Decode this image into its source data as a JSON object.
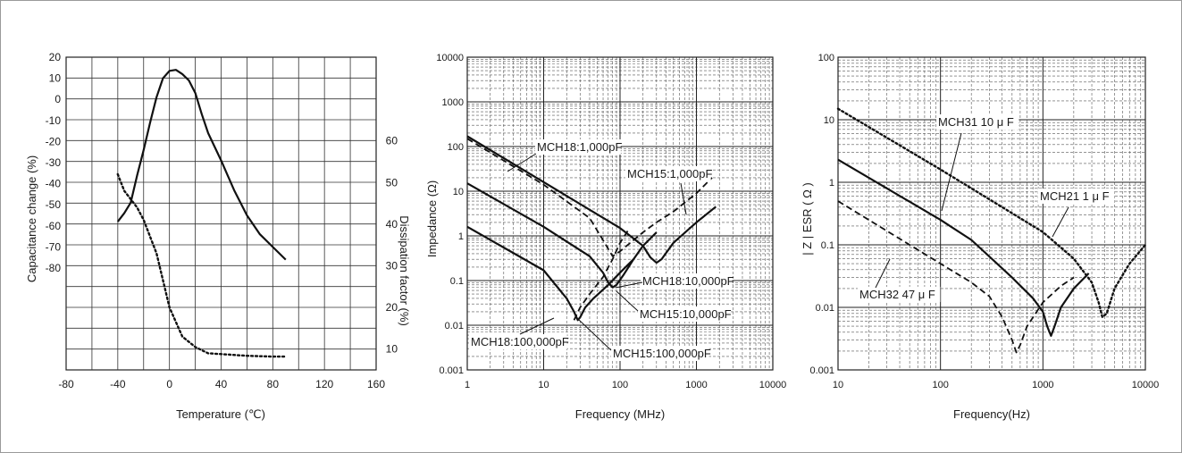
{
  "chart_data": [
    {
      "type": "line",
      "xlabel": "Temperature (℃)",
      "ylabel": "Capacitance change (%)",
      "y2label": "Dissipation factor (%)",
      "xlim": [
        -80,
        160
      ],
      "ylim": [
        -80,
        20
      ],
      "y2lim": [
        10,
        60
      ],
      "x_ticks": [
        "-80",
        "-40",
        "0",
        "40",
        "80",
        "120",
        "160"
      ],
      "y_ticks": [
        "20",
        "10",
        "0",
        "-10",
        "-20",
        "-30",
        "-40",
        "-50",
        "-60",
        "-70",
        "-80"
      ],
      "y2_ticks": [
        "60",
        "50",
        "40",
        "30",
        "20",
        "10"
      ],
      "grid": true,
      "series": [
        {
          "style": "solid",
          "axis": "left",
          "x": [
            -40,
            -35,
            -30,
            -25,
            -20,
            -15,
            -10,
            -5,
            0,
            5,
            10,
            15,
            20,
            25,
            30,
            40,
            50,
            60,
            70,
            80,
            90
          ],
          "y": [
            -58,
            -54,
            -49,
            -36,
            -24,
            -11,
            1,
            10,
            13.5,
            14,
            12,
            9,
            3,
            -7,
            -16,
            -29,
            -43,
            -55,
            -64,
            -70,
            -76
          ]
        },
        {
          "style": "dotted",
          "axis": "right",
          "x": [
            -40,
            -35,
            -30,
            -25,
            -20,
            -10,
            0,
            10,
            20,
            30,
            40,
            60,
            80,
            90
          ],
          "y": [
            52,
            48,
            46,
            44,
            41,
            33,
            20,
            13,
            10.5,
            9,
            8.8,
            8.4,
            8.2,
            8.2
          ]
        }
      ]
    },
    {
      "type": "line",
      "xlabel": "Frequency (MHz)",
      "ylabel": "Impedance (Ω)",
      "xscale": "log",
      "yscale": "log",
      "xlim": [
        1,
        10000
      ],
      "ylim": [
        0.001,
        10000
      ],
      "x_ticks": [
        "1",
        "10",
        "100",
        "1000",
        "10000"
      ],
      "y_ticks": [
        "10000",
        "1000",
        "100",
        "10",
        "1",
        "0.1",
        "0.01",
        "0.001"
      ],
      "grid": true,
      "annotations": [
        "MCH18:1,000pF",
        "MCH15:1,000pF",
        "MCH18:10,000pF",
        "MCH15:10,000pF",
        "MCH18:100,000pF",
        "MCH15:100,000pF"
      ],
      "series": [
        {
          "name": "MCH18:1,000pF",
          "style": "solid",
          "x": [
            1,
            10,
            100,
            200,
            250,
            300,
            350,
            500,
            1000,
            1800
          ],
          "y": [
            170,
            16,
            1.5,
            0.6,
            0.33,
            0.25,
            0.3,
            0.7,
            2,
            4.5
          ]
        },
        {
          "name": "MCH15:1,000pF",
          "style": "dashed",
          "x": [
            1,
            10,
            40,
            60,
            80,
            100,
            150,
            200,
            300,
            500,
            1000,
            1600
          ],
          "y": [
            150,
            14,
            2.5,
            0.8,
            0.35,
            0.45,
            0.8,
            1.2,
            2,
            3.5,
            9,
            20
          ]
        },
        {
          "name": "MCH18:10,000pF",
          "style": "solid",
          "x": [
            1,
            10,
            40,
            60,
            70,
            80,
            90,
            110,
            150,
            200,
            300
          ],
          "y": [
            15,
            1.6,
            0.35,
            0.15,
            0.09,
            0.07,
            0.08,
            0.13,
            0.3,
            0.6,
            1.2
          ]
        },
        {
          "name": "MCH18:100,000pF",
          "style": "solid",
          "x": [
            1,
            10,
            20,
            25,
            28,
            30,
            35,
            45,
            70,
            100,
            150
          ],
          "y": [
            1.6,
            0.17,
            0.04,
            0.02,
            0.013,
            0.015,
            0.025,
            0.04,
            0.08,
            0.15,
            0.3
          ]
        },
        {
          "name": "MCH15:100,000pF",
          "style": "dashed",
          "x": [
            25,
            30,
            40,
            60,
            80,
            100,
            130
          ],
          "y": [
            0.013,
            0.025,
            0.05,
            0.12,
            0.3,
            0.7,
            1.4
          ]
        }
      ]
    },
    {
      "type": "line",
      "xlabel": "Frequency(Hz)",
      "ylabel": "| Z | ESR ( Ω )",
      "xscale": "log",
      "yscale": "log",
      "xlim": [
        10,
        10000
      ],
      "ylim": [
        0.001,
        100
      ],
      "x_ticks": [
        "10",
        "100",
        "1000",
        "10000"
      ],
      "y_ticks": [
        "100",
        "10",
        "1",
        "0.1",
        "0.01",
        "0.001"
      ],
      "grid": true,
      "annotations": [
        "MCH31 10 μ F",
        "MCH21 1 μ F",
        "MCH32 47 μ F"
      ],
      "series": [
        {
          "name": "MCH31 10 μ F",
          "style": "solid",
          "x": [
            10,
            100,
            200,
            500,
            800,
            1000,
            1100,
            1200,
            1300,
            1500,
            2000,
            2800
          ],
          "y": [
            2.3,
            0.25,
            0.12,
            0.03,
            0.014,
            0.0085,
            0.005,
            0.0035,
            0.005,
            0.01,
            0.02,
            0.035
          ]
        },
        {
          "name": "MCH21 1 μ F",
          "style": "dotted",
          "x": [
            10,
            100,
            1000,
            2000,
            3000,
            3500,
            3800,
            4200,
            5000,
            7000,
            10000
          ],
          "y": [
            15,
            1.6,
            0.16,
            0.06,
            0.025,
            0.012,
            0.007,
            0.008,
            0.02,
            0.05,
            0.1
          ]
        },
        {
          "name": "MCH32 47 μ F",
          "style": "dashed",
          "x": [
            10,
            100,
            200,
            300,
            400,
            500,
            550,
            600,
            700,
            1000,
            1500,
            2000
          ],
          "y": [
            0.5,
            0.05,
            0.025,
            0.015,
            0.007,
            0.003,
            0.0019,
            0.0025,
            0.005,
            0.012,
            0.022,
            0.03
          ]
        }
      ]
    }
  ]
}
